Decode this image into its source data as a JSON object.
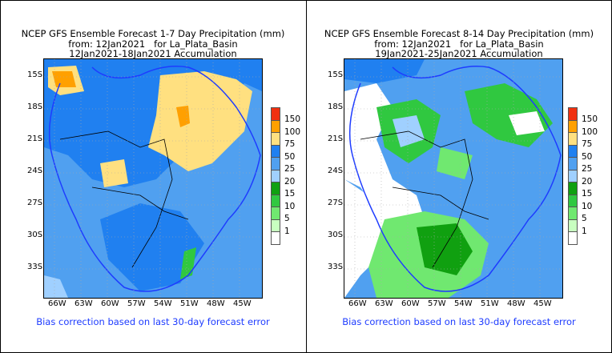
{
  "panels": [
    {
      "title_lines": [
        "NCEP GFS Ensemble Forecast 1-7 Day Precipitation (mm)",
        "from: 12Jan2021   for La_Plata_Basin",
        "12Jan2021-18Jan2021 Accumulation"
      ],
      "note": "Bias correction based on last 30-day forecast error"
    },
    {
      "title_lines": [
        "NCEP GFS Ensemble Forecast 8-14 Day Precipitation (mm)",
        "from: 12Jan2021   for La_Plata_Basin",
        "19Jan2021-25Jan2021 Accumulation"
      ],
      "note": "Bias correction based on last 30-day forecast error"
    }
  ],
  "lat_labels": [
    "15S",
    "18S",
    "21S",
    "24S",
    "27S",
    "30S",
    "33S"
  ],
  "lon_labels": [
    "66W",
    "63W",
    "60W",
    "57W",
    "54W",
    "51W",
    "48W",
    "45W"
  ],
  "colorbar": {
    "labels": [
      "150",
      "100",
      "75",
      "50",
      "25",
      "20",
      "15",
      "10",
      "5",
      "1"
    ],
    "colors": [
      "#f03010",
      "#ffa000",
      "#ffe080",
      "#2080f0",
      "#50a0f0",
      "#a0d0ff",
      "#10a010",
      "#30c840",
      "#70e870",
      "#c8ffc0",
      "#ffffff"
    ]
  },
  "colors": {
    "basin_outline": "#1e3cff",
    "note_text": "#1e3cff"
  }
}
